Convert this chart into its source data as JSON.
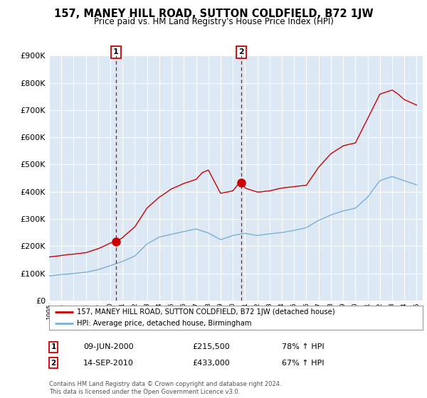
{
  "title": "157, MANEY HILL ROAD, SUTTON COLDFIELD, B72 1JW",
  "subtitle": "Price paid vs. HM Land Registry's House Price Index (HPI)",
  "red_label": "157, MANEY HILL ROAD, SUTTON COLDFIELD, B72 1JW (detached house)",
  "blue_label": "HPI: Average price, detached house, Birmingham",
  "annotation1_date": "09-JUN-2000",
  "annotation1_price": "£215,500",
  "annotation1_hpi": "78% ↑ HPI",
  "annotation2_date": "14-SEP-2010",
  "annotation2_price": "£433,000",
  "annotation2_hpi": "67% ↑ HPI",
  "footer": "Contains HM Land Registry data © Crown copyright and database right 2024.\nThis data is licensed under the Open Government Licence v3.0.",
  "background_color": "#ffffff",
  "plot_bg_color": "#dce9f5",
  "grid_color": "#ffffff",
  "red_line_color": "#cc0000",
  "blue_line_color": "#7bafd4",
  "dashed_color": "#cc0000",
  "ylim": [
    0,
    900000
  ],
  "yticks": [
    0,
    100000,
    200000,
    300000,
    400000,
    500000,
    600000,
    700000,
    800000,
    900000
  ],
  "xlim": [
    1995,
    2025.5
  ],
  "sale1_x": 2000.44,
  "sale1_y": 215500,
  "sale2_x": 2010.71,
  "sale2_y": 433000,
  "hpi_keypoints_x": [
    1995,
    1996,
    1997,
    1998,
    1999,
    2000,
    2001,
    2002,
    2003,
    2004,
    2005,
    2006,
    2007,
    2008,
    2009,
    2010,
    2011,
    2012,
    2013,
    2014,
    2015,
    2016,
    2017,
    2018,
    2019,
    2020,
    2021,
    2022,
    2023,
    2024,
    2025
  ],
  "hpi_keypoints_y": [
    90000,
    95000,
    100000,
    105000,
    115000,
    130000,
    145000,
    165000,
    210000,
    235000,
    245000,
    255000,
    265000,
    250000,
    225000,
    240000,
    248000,
    240000,
    245000,
    250000,
    258000,
    268000,
    295000,
    315000,
    330000,
    340000,
    380000,
    440000,
    455000,
    440000,
    425000
  ],
  "red_keypoints_x": [
    1995,
    1996,
    1997,
    1998,
    1999,
    2000,
    2000.5,
    2001,
    2002,
    2003,
    2004,
    2005,
    2006,
    2007,
    2007.5,
    2008,
    2009,
    2010,
    2010.5,
    2010.75,
    2011,
    2012,
    2013,
    2014,
    2015,
    2016,
    2017,
    2018,
    2019,
    2020,
    2021,
    2022,
    2023,
    2023.5,
    2024,
    2024.5,
    2025
  ],
  "red_keypoints_y": [
    160000,
    165000,
    170000,
    175000,
    190000,
    210000,
    215500,
    230000,
    270000,
    340000,
    380000,
    410000,
    430000,
    445000,
    470000,
    480000,
    395000,
    405000,
    433000,
    440000,
    415000,
    400000,
    405000,
    415000,
    420000,
    425000,
    490000,
    540000,
    570000,
    580000,
    670000,
    760000,
    775000,
    760000,
    740000,
    730000,
    720000
  ]
}
